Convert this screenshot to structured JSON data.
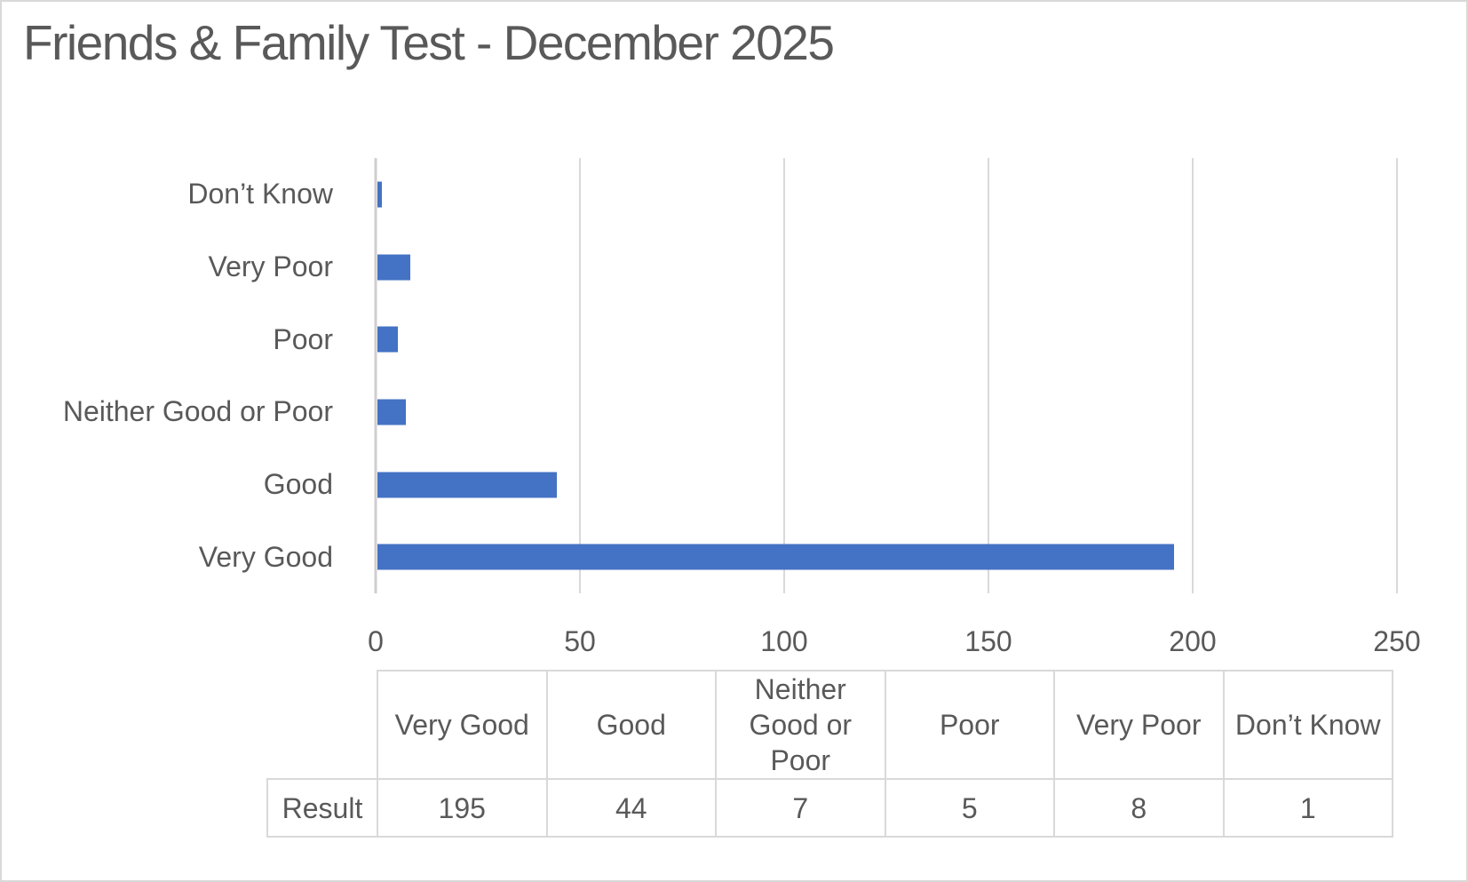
{
  "window": {
    "background": "#ffffff",
    "border_color": "#d9d9d9"
  },
  "title": "Friends & Family Test - December 2025",
  "chart_data": {
    "type": "bar",
    "orientation": "horizontal",
    "title": "Friends & Family Test - December 2025",
    "categories": [
      "Don’t Know",
      "Very Poor",
      "Poor",
      "Neither Good or Poor",
      "Good",
      "Very Good"
    ],
    "values": [
      1,
      8,
      5,
      7,
      44,
      195
    ],
    "xlabel": "",
    "ylabel": "",
    "xlim": [
      0,
      250
    ],
    "x_ticks": [
      0,
      50,
      100,
      150,
      200,
      250
    ],
    "grid": true,
    "legend": false,
    "bar_color": "#4472c4",
    "gridline_color": "#d9d9d9",
    "axis_line_color": "#d0cece",
    "text_color": "#595959"
  },
  "table": {
    "row_label": "Result",
    "columns": [
      "Very Good",
      "Good",
      "Neither Good or Poor",
      "Poor",
      "Very Poor",
      "Don’t Know"
    ],
    "values": [
      195,
      44,
      7,
      5,
      8,
      1
    ]
  }
}
